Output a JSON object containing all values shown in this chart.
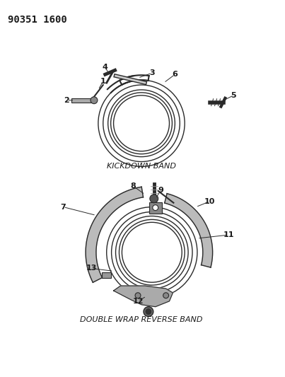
{
  "title_code": "90351 1600",
  "background_color": "#ffffff",
  "label1_text": "KICKDOWN BAND",
  "label2_text": "DOUBLE WRAP REVERSE BAND",
  "line_color": "#2a2a2a",
  "text_color": "#1a1a1a"
}
